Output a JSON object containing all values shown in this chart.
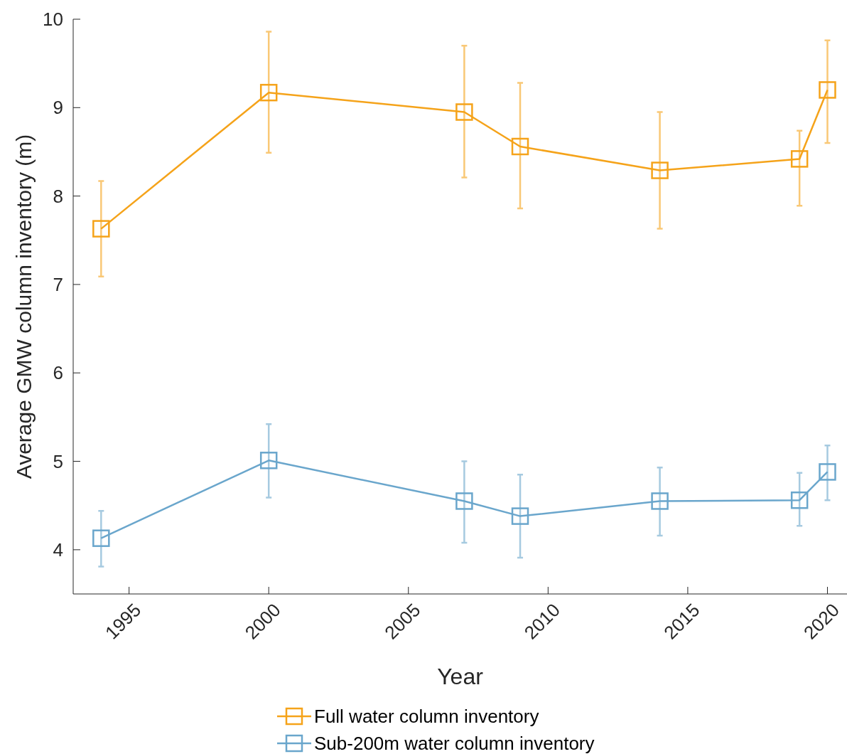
{
  "chart_data": {
    "type": "line",
    "xlabel": "Year",
    "ylabel": "Average GMW column inventory (m)",
    "xlim": [
      1993,
      2020.7
    ],
    "xticks": [
      1995,
      2000,
      2005,
      2010,
      2015,
      2020
    ],
    "ylim": [
      3.5,
      10
    ],
    "yticks": [
      4,
      5,
      6,
      7,
      8,
      9,
      10
    ],
    "grid": false,
    "legend": "bottom",
    "marker": "square",
    "line_style": "solid",
    "series": [
      {
        "name": "Full water column inventory",
        "color": "#f5a31a",
        "x": [
          1994,
          2000,
          2007,
          2009,
          2014,
          2019,
          2020
        ],
        "values": [
          7.63,
          9.17,
          8.95,
          8.56,
          8.29,
          8.42,
          9.2
        ],
        "errors": [
          [
            7.09,
            8.17
          ],
          [
            8.49,
            9.86
          ],
          [
            8.21,
            9.7
          ],
          [
            7.86,
            9.28
          ],
          [
            7.63,
            8.95
          ],
          [
            7.89,
            8.74
          ],
          [
            8.6,
            9.76
          ]
        ]
      },
      {
        "name": "Sub-200m water column inventory",
        "color": "#6aa6cc",
        "x": [
          1994,
          2000,
          2007,
          2009,
          2014,
          2019,
          2020
        ],
        "values": [
          4.13,
          5.01,
          4.55,
          4.38,
          4.55,
          4.56,
          4.88
        ],
        "errors": [
          [
            3.81,
            4.44
          ],
          [
            4.59,
            5.42
          ],
          [
            4.08,
            5.0
          ],
          [
            3.91,
            4.85
          ],
          [
            4.16,
            4.93
          ],
          [
            4.27,
            4.87
          ],
          [
            4.56,
            5.18
          ]
        ]
      }
    ]
  }
}
